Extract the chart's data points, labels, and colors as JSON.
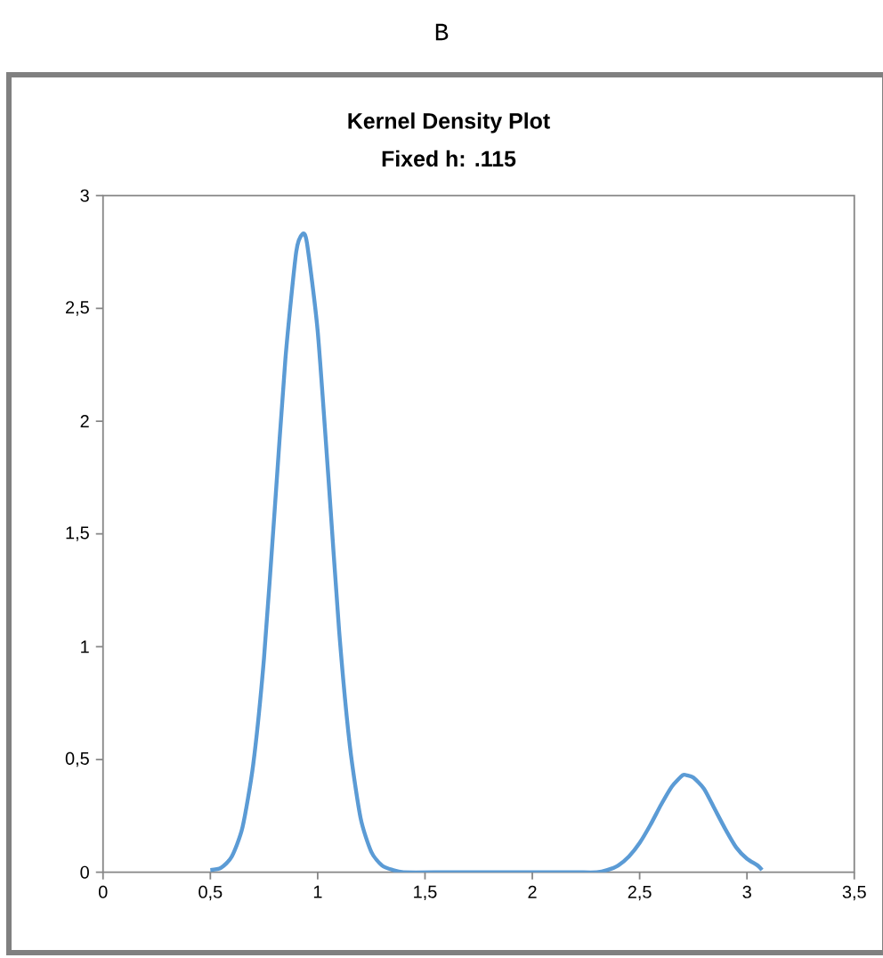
{
  "chart_data": {
    "type": "line",
    "title": "Kernel Density Plot",
    "subtitle": "Fixed h: .115",
    "annotations": [
      "B"
    ],
    "xlim": [
      0,
      3.5
    ],
    "xticks": [
      0,
      {
        "value": 0.5,
        "label": "0,5"
      },
      1,
      {
        "value": 1.5,
        "label": "1,5"
      },
      2,
      {
        "value": 2.5,
        "label": "2,5"
      },
      3,
      {
        "value": 3.5,
        "label": "3,5"
      }
    ],
    "ylim": [
      0,
      3
    ],
    "yticks": [
      0,
      {
        "value": 0.5,
        "label": "0,5"
      },
      1,
      {
        "value": 1.5,
        "label": "1,5"
      },
      2,
      {
        "value": 2.5,
        "label": "2,5"
      },
      3
    ],
    "marker": "none",
    "line_style": "solid",
    "series": [
      {
        "color": "#5b9bd5",
        "x": [
          0.5,
          0.55,
          0.6,
          0.65,
          0.7,
          0.75,
          0.8,
          0.85,
          0.9,
          0.93,
          0.95,
          1.0,
          1.05,
          1.1,
          1.15,
          1.2,
          1.25,
          1.3,
          1.35,
          1.4,
          1.6,
          1.8,
          2.0,
          2.2,
          2.3,
          2.35,
          2.4,
          2.45,
          2.5,
          2.55,
          2.6,
          2.65,
          2.7,
          2.72,
          2.75,
          2.8,
          2.85,
          2.9,
          2.95,
          3.0,
          3.05,
          3.07
        ],
        "values": [
          0.01,
          0.02,
          0.07,
          0.2,
          0.48,
          0.95,
          1.61,
          2.28,
          2.75,
          2.83,
          2.79,
          2.4,
          1.75,
          1.07,
          0.56,
          0.24,
          0.09,
          0.03,
          0.01,
          0,
          0,
          0,
          0,
          0,
          0,
          0.01,
          0.03,
          0.07,
          0.13,
          0.21,
          0.3,
          0.38,
          0.43,
          0.43,
          0.42,
          0.37,
          0.28,
          0.19,
          0.11,
          0.06,
          0.03,
          0.01
        ]
      }
    ]
  }
}
